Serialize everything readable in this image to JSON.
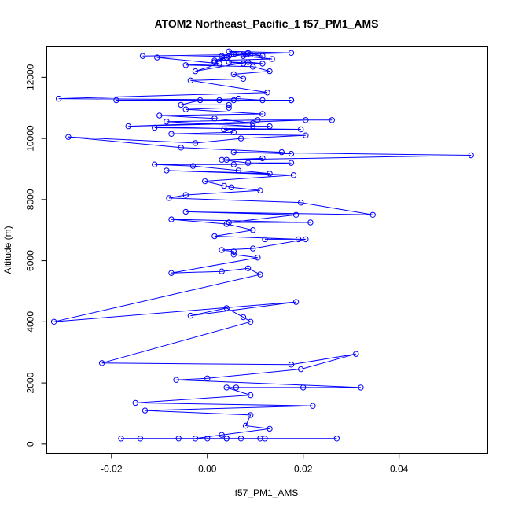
{
  "chart_data": {
    "type": "line",
    "title": "ATOM2 Northeast_Pacific_1 f57_PM1_AMS",
    "xlabel": "f57_PM1_AMS",
    "ylabel": "Altitude (m)",
    "xlim": [
      -0.0335,
      0.0585
    ],
    "ylim": [
      -300,
      13000
    ],
    "x_ticks": [
      -0.02,
      0.0,
      0.02,
      0.04
    ],
    "x_tick_labels": [
      "-0.02",
      "0.00",
      "0.02",
      "0.04"
    ],
    "y_ticks": [
      0,
      2000,
      4000,
      6000,
      8000,
      10000,
      12000
    ],
    "y_tick_labels": [
      "0",
      "2000",
      "4000",
      "6000",
      "8000",
      "10000",
      "12000"
    ],
    "grid": false,
    "markers": "open-circle",
    "color": "#0000ff",
    "series": [
      {
        "x": [
          0.027,
          0.012,
          -0.018,
          0.004,
          -0.014,
          0.007,
          -0.006,
          0.0,
          0.004,
          0.011,
          -0.0025,
          0.003,
          0.013,
          0.008,
          0.009,
          -0.013,
          0.022,
          -0.015,
          0.009,
          0.004,
          0.006,
          0.02,
          0.032,
          -0.0065,
          0.0,
          0.0195,
          0.031,
          0.0175,
          -0.022,
          0.009,
          0.0075,
          0.004,
          -0.0035,
          0.0185,
          -0.032,
          0.011,
          0.0085,
          0.003,
          -0.0075,
          0.0105,
          0.0055,
          0.0055,
          0.003,
          0.0095,
          0.0205,
          0.012,
          0.019,
          0.0015,
          0.0095,
          0.004,
          -0.0075,
          0.0215,
          0.0045,
          0.0185,
          -0.0045,
          0.0345,
          0.0195,
          -0.008,
          -0.0045,
          0.011,
          0.005,
          0.0035,
          -0.0005,
          0.018,
          -0.0085,
          0.013,
          0.0065,
          -0.003,
          -0.011,
          0.0055,
          0.0175,
          0.0085,
          0.003,
          0.0115,
          0.004,
          0.055,
          0.0055,
          0.0175,
          0.0155,
          -0.0055,
          -0.029,
          -0.0025,
          0.007,
          0.0205,
          -0.0075,
          0.0055,
          0.0035,
          0.0195,
          -0.011,
          0.013,
          0.0095,
          -0.0085,
          0.0105,
          0.026,
          0.0205,
          -0.0165,
          0.0095,
          0.0015,
          -0.01,
          0.0115,
          -0.0045,
          0.0045,
          0.0045,
          -0.0055,
          -0.0015,
          0.0065,
          0.0115,
          0.0175,
          0.0055,
          -0.019,
          0.0025,
          0.0175,
          -0.031,
          0.0125,
          -0.0035,
          0.0075,
          0.0055,
          0.013,
          0.0095,
          -0.0045,
          0.0075,
          0.0045,
          0.0115,
          0.0085,
          -0.0025,
          0.0025,
          -0.0105,
          0.003,
          0.0055,
          0.0115,
          0.0085,
          0.0075,
          0.0135,
          0.0015,
          0.0035,
          0.0075,
          0.004,
          0.0015,
          0.0045,
          0.005,
          0.0175,
          0.0045,
          0.009,
          -0.0135
        ],
        "y": [
          180,
          180,
          180,
          180,
          180,
          180,
          180,
          180,
          180,
          180,
          180,
          300,
          500,
          600,
          950,
          1100,
          1250,
          1350,
          1600,
          1850,
          1850,
          1850,
          1850,
          2100,
          2150,
          2450,
          2950,
          2600,
          2650,
          4000,
          4150,
          4450,
          4200,
          4650,
          4000,
          5550,
          5750,
          5650,
          5600,
          6100,
          6200,
          6300,
          6350,
          6400,
          6700,
          6700,
          6700,
          6800,
          7000,
          7200,
          7350,
          7250,
          7250,
          7500,
          7600,
          7500,
          7900,
          8050,
          8150,
          8300,
          8400,
          8450,
          8600,
          8800,
          8950,
          8850,
          8950,
          9100,
          9150,
          9150,
          9200,
          9200,
          9300,
          9350,
          9300,
          9450,
          9550,
          9500,
          9550,
          9700,
          10050,
          9850,
          10000,
          10100,
          10150,
          10200,
          10300,
          10300,
          10350,
          10400,
          10400,
          10550,
          10600,
          10600,
          10600,
          10400,
          10500,
          10650,
          10750,
          10800,
          10950,
          11000,
          11100,
          11100,
          11250,
          11300,
          11250,
          11250,
          11250,
          11250,
          11250,
          11250,
          11300,
          11500,
          11900,
          11950,
          12100,
          12200,
          12350,
          12400,
          12450,
          12500,
          12450,
          12500,
          12200,
          12450,
          12650,
          12700,
          12750,
          12700,
          12800,
          12700,
          12600,
          12550,
          12650,
          12750,
          12650,
          12500,
          12700,
          12750,
          12800,
          12850,
          12750,
          12700
        ]
      }
    ]
  }
}
